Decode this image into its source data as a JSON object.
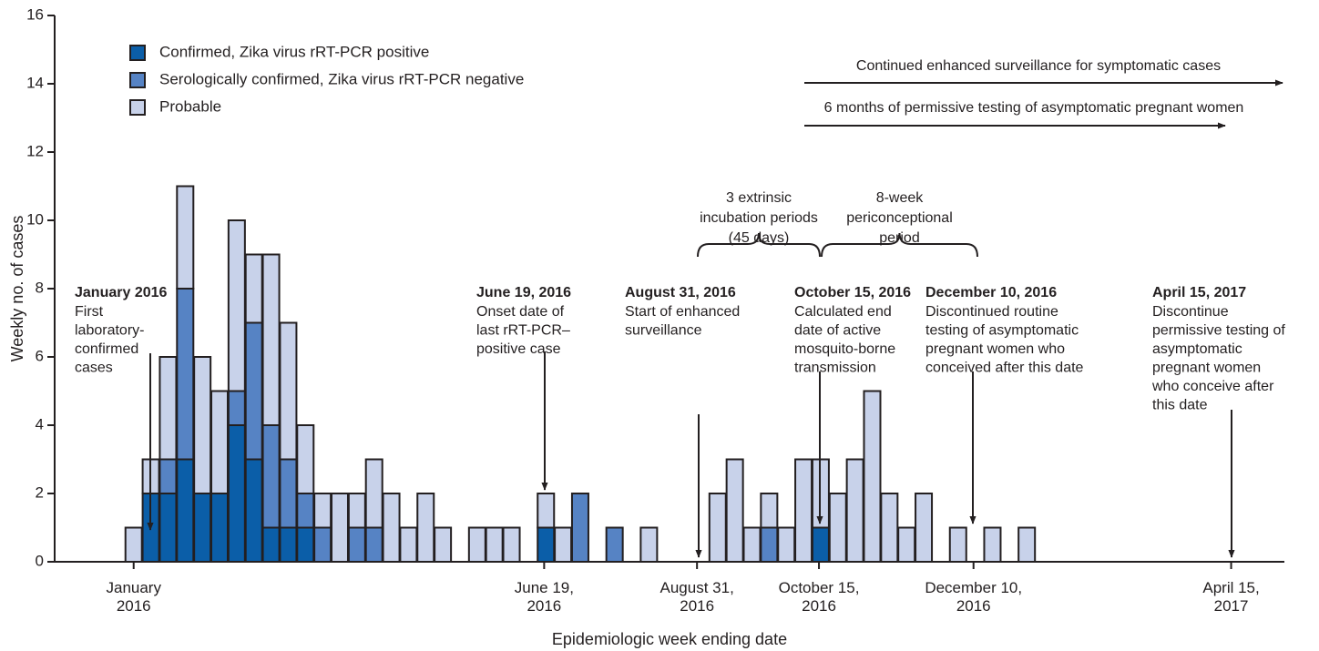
{
  "chart_data": {
    "type": "stacked-bar",
    "y_label": "Weekly no. of cases",
    "x_label": "Epidemiologic week ending date",
    "categories": [
      null,
      null,
      null,
      null,
      null,
      null,
      null,
      null,
      null,
      null,
      null,
      null,
      null,
      null,
      null,
      null,
      null,
      null,
      null,
      null,
      null,
      null,
      null,
      null,
      null,
      null,
      null,
      null,
      null,
      null,
      null,
      null,
      null,
      null,
      null,
      null,
      null,
      null,
      null,
      null,
      null,
      null,
      null,
      null,
      null,
      null,
      null,
      null,
      null,
      null,
      null,
      null,
      null
    ],
    "series": [
      {
        "name": "Confirmed, Zika virus rRT-PCR positive",
        "color": "#0b5ea8",
        "values": [
          0,
          2,
          2,
          3,
          2,
          2,
          4,
          3,
          1,
          1,
          1,
          0,
          0,
          0,
          0,
          0,
          0,
          0,
          0,
          0,
          0,
          0,
          0,
          0,
          1,
          0,
          0,
          0,
          0,
          0,
          0,
          0,
          0,
          0,
          0,
          0,
          0,
          0,
          0,
          0,
          1,
          0,
          0,
          0,
          0,
          0,
          0,
          0,
          0,
          0,
          0,
          0,
          0
        ]
      },
      {
        "name": "Serologically confirmed, Zika virus rRT-PCR negative",
        "color": "#5683c4",
        "values": [
          0,
          0,
          1,
          5,
          0,
          0,
          1,
          4,
          3,
          2,
          1,
          1,
          0,
          1,
          1,
          0,
          0,
          0,
          0,
          0,
          0,
          0,
          0,
          0,
          0,
          0,
          2,
          0,
          1,
          0,
          0,
          0,
          0,
          0,
          0,
          0,
          0,
          1,
          0,
          0,
          0,
          0,
          0,
          0,
          0,
          0,
          0,
          0,
          0,
          0,
          0,
          0,
          0
        ]
      },
      {
        "name": "Probable",
        "color": "#c8d2ea",
        "values": [
          1,
          1,
          3,
          3,
          4,
          3,
          5,
          2,
          5,
          4,
          2,
          1,
          2,
          1,
          2,
          2,
          1,
          2,
          1,
          0,
          1,
          1,
          1,
          0,
          1,
          1,
          0,
          0,
          0,
          0,
          1,
          0,
          0,
          0,
          2,
          3,
          1,
          1,
          1,
          3,
          2,
          2,
          3,
          5,
          2,
          1,
          2,
          0,
          1,
          0,
          1,
          0,
          1
        ]
      }
    ],
    "ylim": [
      0,
      16
    ],
    "yticks": [
      0,
      2,
      4,
      6,
      8,
      10,
      12,
      14,
      16
    ],
    "xlim": [
      -4.6,
      67
    ],
    "xticks": [
      {
        "value": 0,
        "label": "January 2016"
      },
      {
        "value": 23.9,
        "label": "June 19, 2016"
      },
      {
        "value": 32.8,
        "label": "August 31, 2016"
      },
      {
        "value": 39.9,
        "label": "October 15, 2016"
      },
      {
        "value": 48.9,
        "label": "December 10, 2016"
      },
      {
        "value": 63.9,
        "label": "April 15, 2017"
      }
    ],
    "legend_position": "upper left",
    "annotations": [
      {
        "title": "January 2016",
        "lines": [
          "First",
          "laboratory-",
          "confirmed",
          "cases"
        ]
      },
      {
        "title": "June 19, 2016",
        "lines": [
          "Onset date of",
          "last rRT-PCR–",
          "positive case"
        ]
      },
      {
        "title": "August 31, 2016",
        "lines": [
          "Start of enhanced",
          "surveillance"
        ]
      },
      {
        "title": "October 15, 2016",
        "lines": [
          "Calculated end",
          "date of active",
          "mosquito-borne",
          "transmission"
        ]
      },
      {
        "title": "December 10, 2016",
        "lines": [
          "Discontinued routine",
          "testing of asymptomatic",
          "pregnant women who",
          "conceived after this date"
        ]
      },
      {
        "title": "April 15, 2017",
        "lines": [
          "Discontinue",
          "permissive testing of",
          "asymptomatic",
          "pregnant women",
          "who conceive after",
          "this date"
        ]
      }
    ],
    "periods": [
      {
        "lines": [
          "3 extrinsic",
          "incubation periods",
          "(45 days)"
        ]
      },
      {
        "lines": [
          "8-week",
          "periconceptional",
          "period"
        ]
      }
    ],
    "ranges": [
      {
        "text": "Continued enhanced surveillance for symptomatic cases"
      },
      {
        "text": "6 months of permissive testing of asymptomatic pregnant women"
      }
    ]
  }
}
